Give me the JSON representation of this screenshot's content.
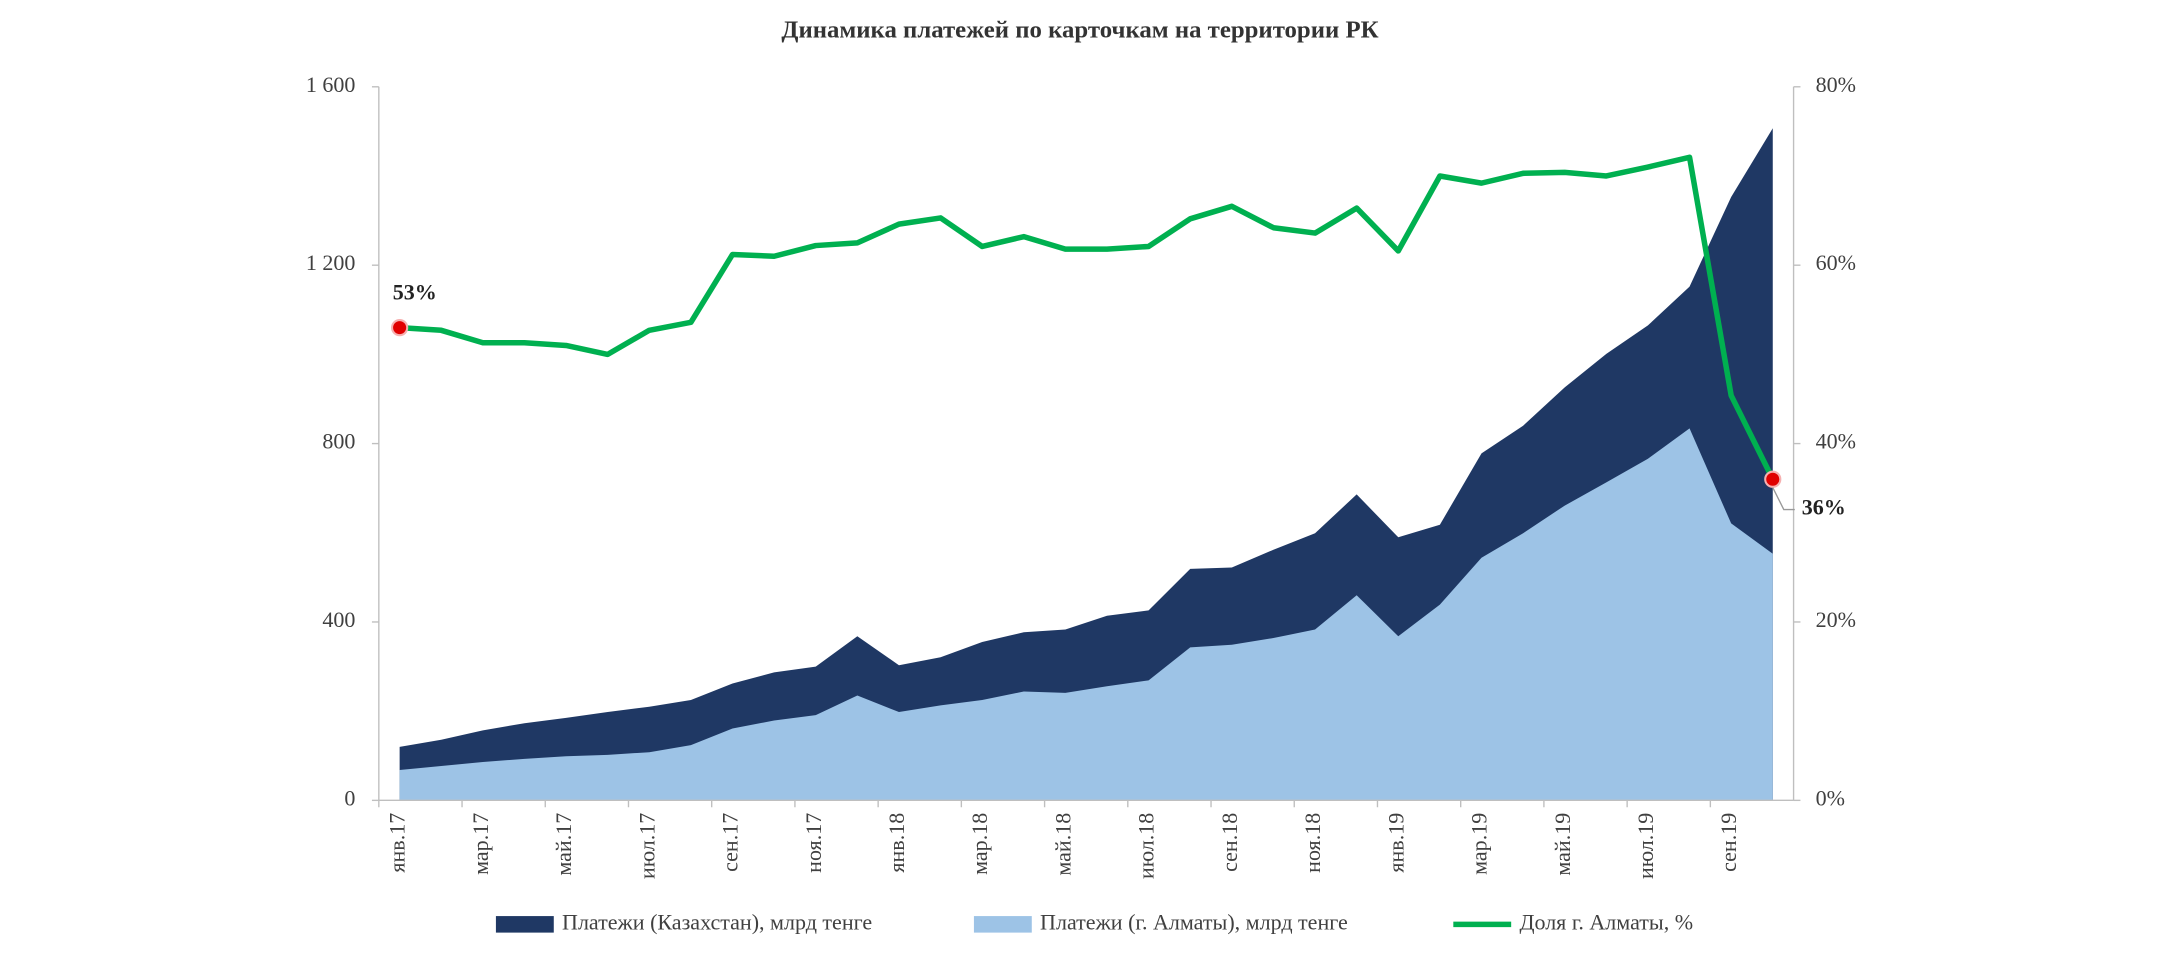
{
  "chart_data": {
    "type": "area-line",
    "title": "Динамика платежей по карточкам на территории РК",
    "categories": [
      "янв.17",
      null,
      "мар.17",
      null,
      "май.17",
      null,
      "июл.17",
      null,
      "сен.17",
      null,
      "ноя.17",
      null,
      "янв.18",
      null,
      "мар.18",
      null,
      "май.18",
      null,
      "июл.18",
      null,
      "сен.18",
      null,
      "ноя.18",
      null,
      "янв.19",
      null,
      "мар.19",
      null,
      "май.19",
      null,
      "июл.19",
      null,
      "сен.19",
      null
    ],
    "series": [
      {
        "name": "Платежи (Казахстан), млрд тенге",
        "type": "area",
        "color": "#1f3864",
        "values": [
          120,
          136,
          157,
          173,
          185,
          198,
          210,
          225,
          262,
          287,
          300,
          368,
          303,
          321,
          355,
          377,
          383,
          414,
          426,
          519,
          522,
          562,
          599,
          686,
          590,
          618,
          778,
          840,
          926,
          1001,
          1065,
          1152,
          1353,
          1507
        ]
      },
      {
        "name": "Платежи (г. Алматы), млрд тенге",
        "type": "area",
        "color": "#9dc3e6",
        "values": [
          68,
          77,
          86,
          93,
          99,
          102,
          108,
          124,
          161,
          179,
          191,
          235,
          198,
          213,
          225,
          244,
          241,
          256,
          269,
          343,
          349,
          364,
          383,
          460,
          368,
          439,
          544,
          599,
          661,
          713,
          766,
          834,
          621,
          553
        ]
      },
      {
        "name": "Доля г. Алматы, %",
        "type": "line",
        "axis": "y2",
        "color": "#00b050",
        "values": [
          53,
          52.7,
          51.3,
          51.3,
          51,
          50,
          52.7,
          53.6,
          61.2,
          61,
          62.2,
          62.5,
          64.6,
          65.3,
          62.1,
          63.2,
          61.8,
          61.8,
          62.1,
          65.2,
          66.6,
          64.2,
          63.6,
          66.4,
          61.6,
          70,
          69.2,
          70.3,
          70.4,
          70,
          71,
          72.1,
          45.4,
          36
        ],
        "value_labels": [
          "53%",
          null,
          null,
          null,
          null,
          null,
          null,
          null,
          null,
          null,
          null,
          null,
          null,
          null,
          null,
          null,
          null,
          null,
          null,
          null,
          null,
          null,
          null,
          null,
          null,
          null,
          null,
          null,
          null,
          null,
          null,
          null,
          null,
          "36%"
        ],
        "marker_color": "#e00000"
      }
    ],
    "ylim": [
      0,
      1600
    ],
    "yticks": [
      0,
      400,
      800,
      {
        "value": 1200,
        "label": "1 200"
      },
      {
        "value": 1600,
        "label": "1 600"
      }
    ],
    "y2lim": [
      0,
      80
    ],
    "y2ticks": [
      {
        "value": 0,
        "label": "0%"
      },
      {
        "value": 20,
        "label": "20%"
      },
      {
        "value": 40,
        "label": "40%"
      },
      {
        "value": 60,
        "label": "60%"
      },
      {
        "value": 80,
        "label": "80%"
      }
    ],
    "grid": false,
    "legend": "bottom"
  }
}
